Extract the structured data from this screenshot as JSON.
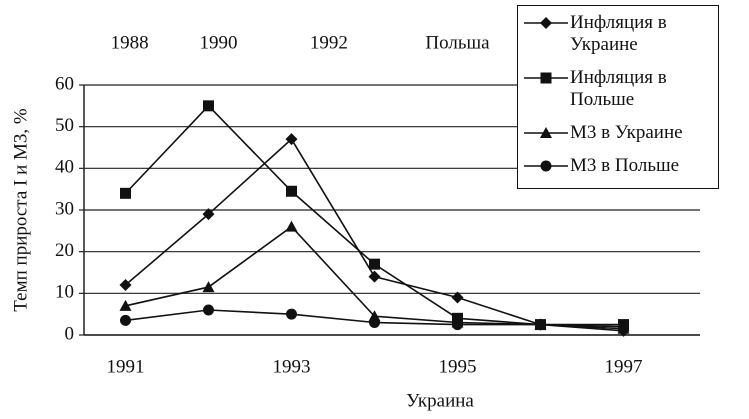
{
  "chart_data": {
    "type": "line",
    "top_labels": [
      "1988",
      "1990",
      "1992",
      "Польша"
    ],
    "x_label": "Украина",
    "y_label": "Темп прироста I и M3, %",
    "categories": [
      "1991",
      null,
      "1993",
      null,
      "1995",
      null,
      "1997"
    ],
    "ylim": [
      0,
      60
    ],
    "yticks": [
      0,
      10,
      20,
      30,
      40,
      50,
      60
    ],
    "grid": true,
    "series": [
      {
        "name": "Инфляция в Украине",
        "color": "#111111",
        "marker": "diamond",
        "values": [
          12,
          29,
          47,
          14,
          9,
          2.5,
          1
        ]
      },
      {
        "name": "Инфляция в Польше",
        "color": "#111111",
        "marker": "square",
        "values": [
          34,
          55,
          34.5,
          17,
          4,
          2.5,
          2.5
        ]
      },
      {
        "name": "M3 в Украине",
        "color": "#111111",
        "marker": "triangle",
        "values": [
          7,
          11.5,
          26,
          4.5,
          3,
          2.5,
          1.5
        ]
      },
      {
        "name": "M3 в Польше",
        "color": "#111111",
        "marker": "circle",
        "values": [
          3.5,
          6,
          5,
          3,
          2.5,
          2.5,
          2
        ]
      }
    ]
  }
}
